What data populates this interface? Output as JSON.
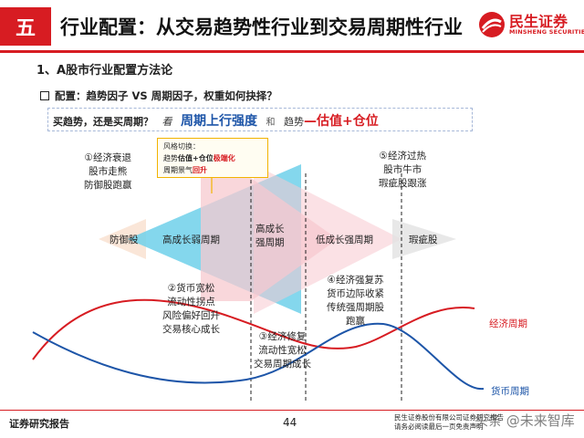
{
  "header": {
    "section_number": "五",
    "title": "行业配置：从交易趋势性行业到交易周期性行业",
    "logo_cn": "民生证券",
    "logo_en": "MINSHENG SECURITIES"
  },
  "subheading": "1、A股市行业配置方法论",
  "bullet": "配置：趋势因子 VS 周期因子，权重如何抉择？",
  "question": {
    "part1": "买趋势，还是买周期？",
    "part2": "看",
    "part3": "周期上行强度",
    "part4": "和",
    "part5": "趋势",
    "part6": "—估值+仓位"
  },
  "style_box": {
    "line1": "风格切换：",
    "line2_a": "趋势",
    "line2_b": "估值+仓位",
    "line2_c": "极端化",
    "line3_a": "周期景气",
    "line3_b": "回升"
  },
  "phases": {
    "defensive": "防御股",
    "high_growth_weak_cycle": "高成长弱周期",
    "high_growth_strong_cycle": [
      "高成长",
      "强周期"
    ],
    "low_growth_strong_cycle": "低成长强周期",
    "cyclical": "瑕疵股"
  },
  "notes": {
    "n1": [
      "①经济衰退",
      "股市走熊",
      "防御股跑赢"
    ],
    "n2": [
      "②货币宽松",
      "流动性拐点",
      "风险偏好回升",
      "交易核心成长"
    ],
    "n3": [
      "③经济修复",
      "流动性宽松",
      "交易周期成长"
    ],
    "n4": [
      "④经济强复苏",
      "货币边际收紧",
      "传统强周期股",
      "跑赢"
    ],
    "n5": [
      "⑤经济过热",
      "股市牛市",
      "瑕疵股跟涨"
    ]
  },
  "curves": {
    "economic_cycle": "经济周期",
    "monetary_cycle": "货币周期"
  },
  "footer": {
    "left": "证券研究报告",
    "page": "44",
    "right_line1": "民生证券股份有限公司证券研究报告",
    "right_line2": "请务必阅读最后一页免责声明",
    "watermark": "头条 @未来智库"
  },
  "colors": {
    "brand_red": "#d71c22",
    "cyan_arrow": "#6fd0ea",
    "pink_arrow": "#f7c9cf",
    "econ_curve": "#d71c22",
    "money_curve": "#1d55a8"
  }
}
